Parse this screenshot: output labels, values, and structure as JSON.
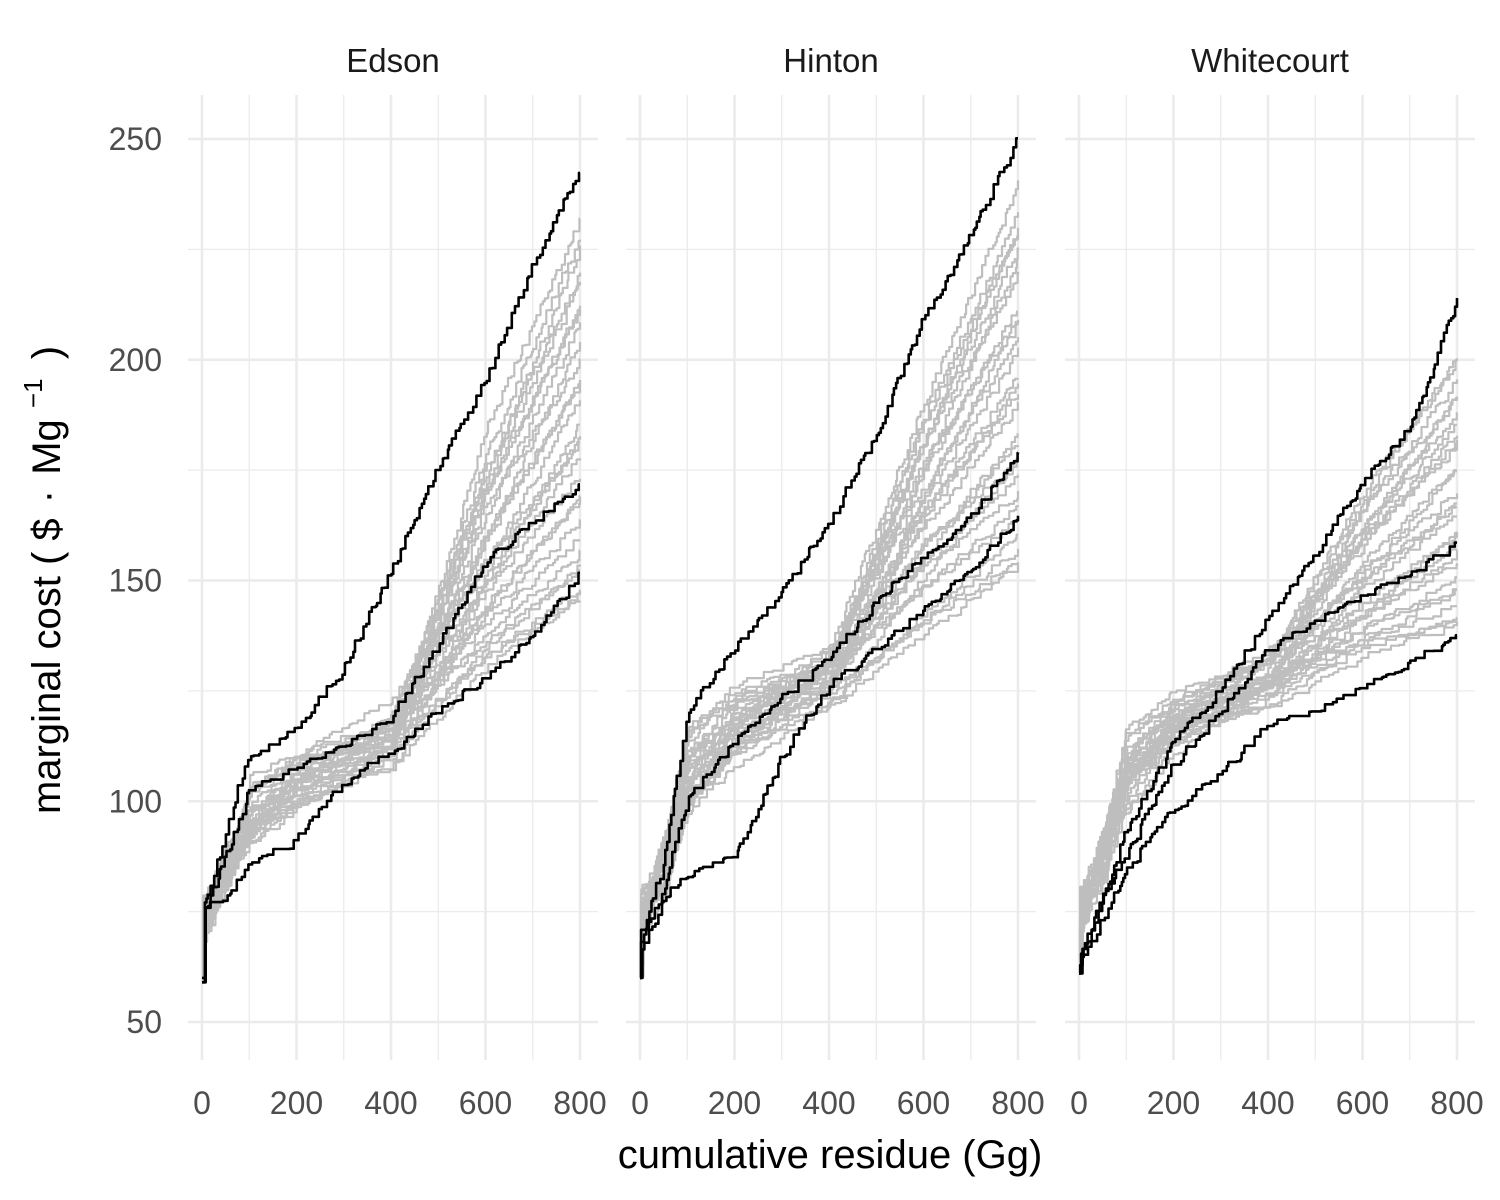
{
  "chart_data": {
    "type": "line",
    "line_style": "step",
    "xlabel": "cumulative residue (Gg)",
    "ylabel_parts": {
      "prefix": "marginal cost ( $",
      "dot": "·",
      "unit": "Mg",
      "exponent": "−1",
      "suffix": ")"
    },
    "xlim": [
      0,
      800
    ],
    "ylim": [
      50,
      250
    ],
    "x_ticks": [
      "0",
      "200",
      "400",
      "600",
      "800"
    ],
    "y_ticks": [
      "50",
      "100",
      "150",
      "200",
      "250"
    ],
    "grid": true,
    "legend": "none",
    "colors": {
      "highlight": "#000000",
      "background_series": "#bebebe",
      "grid": "#ebebeb"
    },
    "panels": [
      {
        "title": "Edson",
        "highlighted": [
          {
            "start": 59,
            "end": 243,
            "knots": [
              [
                5,
                76
              ],
              [
                80,
                104
              ],
              [
                100,
                109
              ],
              [
                200,
                116
              ],
              [
                300,
                130
              ],
              [
                400,
                152
              ],
              [
                500,
                176
              ],
              [
                600,
                195
              ],
              [
                700,
                221
              ],
              [
                800,
                243
              ]
            ]
          },
          {
            "start": 60,
            "end": 171,
            "knots": [
              [
                5,
                74
              ],
              [
                60,
                90
              ],
              [
                100,
                102
              ],
              [
                200,
                107
              ],
              [
                300,
                112
              ],
              [
                400,
                119
              ],
              [
                500,
                135
              ],
              [
                600,
                154
              ],
              [
                700,
                163
              ],
              [
                800,
                171
              ]
            ]
          },
          {
            "start": 59,
            "end": 151,
            "knots": [
              [
                5,
                76
              ],
              [
                50,
                78
              ],
              [
                100,
                85
              ],
              [
                200,
                91
              ],
              [
                300,
                104
              ],
              [
                400,
                111
              ],
              [
                500,
                120
              ],
              [
                600,
                128
              ],
              [
                700,
                137
              ],
              [
                800,
                151
              ]
            ]
          }
        ],
        "background_count": 28,
        "background_end_range": [
          144,
          231
        ],
        "background_mid_range": [
          106,
          122
        ]
      },
      {
        "title": "Hinton",
        "highlighted": [
          {
            "start": 60,
            "end": 250,
            "knots": [
              [
                5,
                70
              ],
              [
                50,
                86
              ],
              [
                100,
                120
              ],
              [
                200,
                134
              ],
              [
                300,
                147
              ],
              [
                400,
                163
              ],
              [
                500,
                183
              ],
              [
                600,
                209
              ],
              [
                700,
                228
              ],
              [
                800,
                250
              ]
            ]
          },
          {
            "start": 60,
            "end": 178,
            "knots": [
              [
                5,
                68
              ],
              [
                50,
                80
              ],
              [
                100,
                100
              ],
              [
                200,
                113
              ],
              [
                300,
                123
              ],
              [
                400,
                132
              ],
              [
                500,
                145
              ],
              [
                600,
                155
              ],
              [
                700,
                164
              ],
              [
                800,
                178
              ]
            ]
          },
          {
            "start": 60,
            "end": 164,
            "knots": [
              [
                5,
                66
              ],
              [
                50,
                78
              ],
              [
                100,
                83
              ],
              [
                200,
                87
              ],
              [
                300,
                110
              ],
              [
                400,
                126
              ],
              [
                500,
                134
              ],
              [
                600,
                143
              ],
              [
                700,
                152
              ],
              [
                800,
                164
              ]
            ]
          }
        ],
        "background_count": 28,
        "background_end_range": [
          152,
          238
        ],
        "background_mid_range": [
          120,
          135
        ]
      },
      {
        "title": "Whitecourt",
        "highlighted": [
          {
            "start": 61,
            "end": 213,
            "knots": [
              [
                5,
                65
              ],
              [
                50,
                78
              ],
              [
                100,
                93
              ],
              [
                200,
                113
              ],
              [
                300,
                125
              ],
              [
                400,
                141
              ],
              [
                500,
                156
              ],
              [
                600,
                172
              ],
              [
                700,
                184
              ],
              [
                800,
                213
              ]
            ]
          },
          {
            "start": 61,
            "end": 158,
            "knots": [
              [
                5,
                65
              ],
              [
                50,
                78
              ],
              [
                100,
                88
              ],
              [
                200,
                108
              ],
              [
                300,
                120
              ],
              [
                400,
                134
              ],
              [
                500,
                140
              ],
              [
                600,
                146
              ],
              [
                700,
                151
              ],
              [
                800,
                158
              ]
            ]
          },
          {
            "start": 61,
            "end": 137,
            "knots": [
              [
                5,
                63
              ],
              [
                50,
                73
              ],
              [
                100,
                84
              ],
              [
                200,
                98
              ],
              [
                300,
                106
              ],
              [
                400,
                117
              ],
              [
                500,
                120
              ],
              [
                600,
                125
              ],
              [
                700,
                131
              ],
              [
                800,
                137
              ]
            ]
          }
        ],
        "background_count": 28,
        "background_end_range": [
          138,
          201
        ],
        "background_mid_range": [
          118,
          135
        ]
      }
    ]
  }
}
